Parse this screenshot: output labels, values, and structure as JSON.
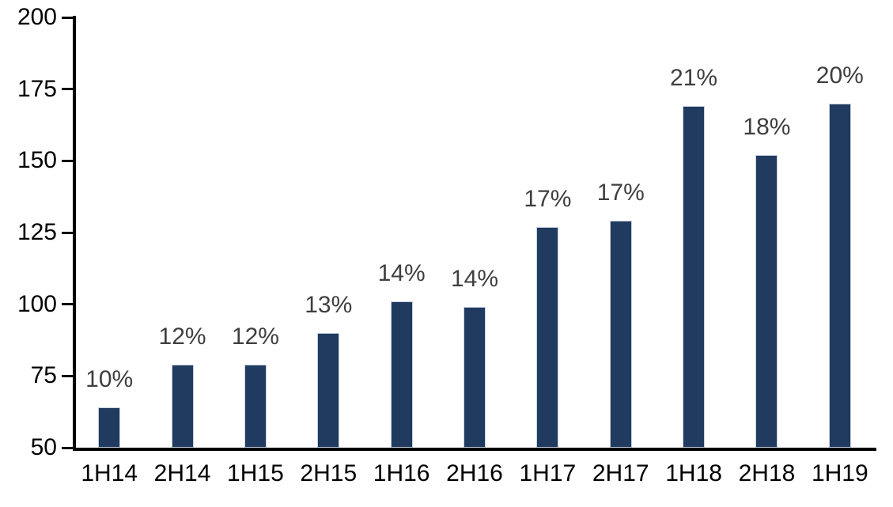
{
  "chart_data": {
    "type": "bar",
    "title": "",
    "xlabel": "",
    "ylabel": "",
    "categories": [
      "1H14",
      "2H14",
      "1H15",
      "2H15",
      "1H16",
      "2H16",
      "1H17",
      "2H17",
      "1H18",
      "2H18",
      "1H19"
    ],
    "values": [
      64,
      79,
      79,
      90,
      101,
      99,
      127,
      129,
      169,
      152,
      170
    ],
    "bar_labels": [
      "10%",
      "12%",
      "12%",
      "13%",
      "14%",
      "14%",
      "17%",
      "17%",
      "21%",
      "18%",
      "20%"
    ],
    "ylim": [
      50,
      200
    ],
    "yticks": [
      200,
      175,
      150,
      125,
      100,
      75,
      50
    ],
    "grid": false,
    "legend": false,
    "colors": {
      "bar_fill": "#203A60",
      "bar_border": "#C8D2E0",
      "value_label": "#3F3F3F",
      "axis": "#000000",
      "background": "#FFFFFF"
    }
  }
}
